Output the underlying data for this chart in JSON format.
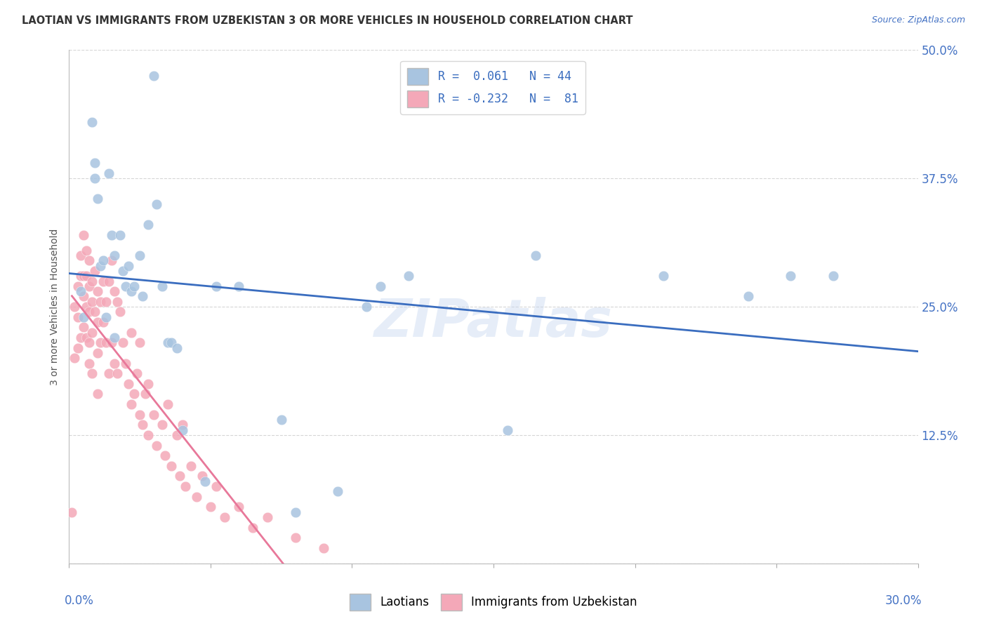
{
  "title": "LAOTIAN VS IMMIGRANTS FROM UZBEKISTAN 3 OR MORE VEHICLES IN HOUSEHOLD CORRELATION CHART",
  "source": "Source: ZipAtlas.com",
  "ylabel": "3 or more Vehicles in Household",
  "xlim": [
    0.0,
    0.3
  ],
  "ylim": [
    0.0,
    0.5
  ],
  "laotian_R": 0.061,
  "laotian_N": 44,
  "uzbekistan_R": -0.232,
  "uzbekistan_N": 81,
  "laotian_color": "#a8c4e0",
  "uzbekistan_color": "#f4a8b8",
  "laotian_line_color": "#3a6dbf",
  "uzbekistan_line_color": "#e8789a",
  "background_color": "#ffffff",
  "grid_color": "#cccccc",
  "title_color": "#333333",
  "axis_color": "#4472c4",
  "watermark": "ZIPatlas",
  "laotian_x": [
    0.004,
    0.005,
    0.008,
    0.009,
    0.009,
    0.01,
    0.011,
    0.012,
    0.013,
    0.014,
    0.015,
    0.016,
    0.016,
    0.018,
    0.019,
    0.02,
    0.021,
    0.022,
    0.023,
    0.025,
    0.026,
    0.028,
    0.03,
    0.031,
    0.033,
    0.035,
    0.036,
    0.038,
    0.04,
    0.048,
    0.052,
    0.06,
    0.075,
    0.08,
    0.095,
    0.105,
    0.11,
    0.12,
    0.155,
    0.165,
    0.21,
    0.24,
    0.255,
    0.27
  ],
  "laotian_y": [
    0.265,
    0.24,
    0.43,
    0.39,
    0.375,
    0.355,
    0.29,
    0.295,
    0.24,
    0.38,
    0.32,
    0.3,
    0.22,
    0.32,
    0.285,
    0.27,
    0.29,
    0.265,
    0.27,
    0.3,
    0.26,
    0.33,
    0.475,
    0.35,
    0.27,
    0.215,
    0.215,
    0.21,
    0.13,
    0.08,
    0.27,
    0.27,
    0.14,
    0.05,
    0.07,
    0.25,
    0.27,
    0.28,
    0.13,
    0.3,
    0.28,
    0.26,
    0.28,
    0.28
  ],
  "uzbekistan_x": [
    0.001,
    0.002,
    0.002,
    0.003,
    0.003,
    0.003,
    0.004,
    0.004,
    0.004,
    0.005,
    0.005,
    0.005,
    0.005,
    0.006,
    0.006,
    0.006,
    0.006,
    0.007,
    0.007,
    0.007,
    0.007,
    0.007,
    0.008,
    0.008,
    0.008,
    0.008,
    0.009,
    0.009,
    0.01,
    0.01,
    0.01,
    0.01,
    0.011,
    0.011,
    0.012,
    0.012,
    0.013,
    0.013,
    0.014,
    0.014,
    0.015,
    0.015,
    0.016,
    0.016,
    0.017,
    0.017,
    0.018,
    0.019,
    0.02,
    0.021,
    0.022,
    0.022,
    0.023,
    0.024,
    0.025,
    0.025,
    0.026,
    0.027,
    0.028,
    0.028,
    0.03,
    0.031,
    0.033,
    0.034,
    0.035,
    0.036,
    0.038,
    0.039,
    0.04,
    0.041,
    0.043,
    0.045,
    0.047,
    0.05,
    0.052,
    0.055,
    0.06,
    0.065,
    0.07,
    0.08,
    0.09
  ],
  "uzbekistan_y": [
    0.05,
    0.25,
    0.2,
    0.27,
    0.24,
    0.21,
    0.3,
    0.28,
    0.22,
    0.32,
    0.28,
    0.26,
    0.23,
    0.305,
    0.28,
    0.25,
    0.22,
    0.295,
    0.27,
    0.245,
    0.215,
    0.195,
    0.275,
    0.255,
    0.225,
    0.185,
    0.285,
    0.245,
    0.265,
    0.235,
    0.205,
    0.165,
    0.255,
    0.215,
    0.275,
    0.235,
    0.255,
    0.215,
    0.275,
    0.185,
    0.295,
    0.215,
    0.265,
    0.195,
    0.255,
    0.185,
    0.245,
    0.215,
    0.195,
    0.175,
    0.155,
    0.225,
    0.165,
    0.185,
    0.145,
    0.215,
    0.135,
    0.165,
    0.125,
    0.175,
    0.145,
    0.115,
    0.135,
    0.105,
    0.155,
    0.095,
    0.125,
    0.085,
    0.135,
    0.075,
    0.095,
    0.065,
    0.085,
    0.055,
    0.075,
    0.045,
    0.055,
    0.035,
    0.045,
    0.025,
    0.015
  ]
}
